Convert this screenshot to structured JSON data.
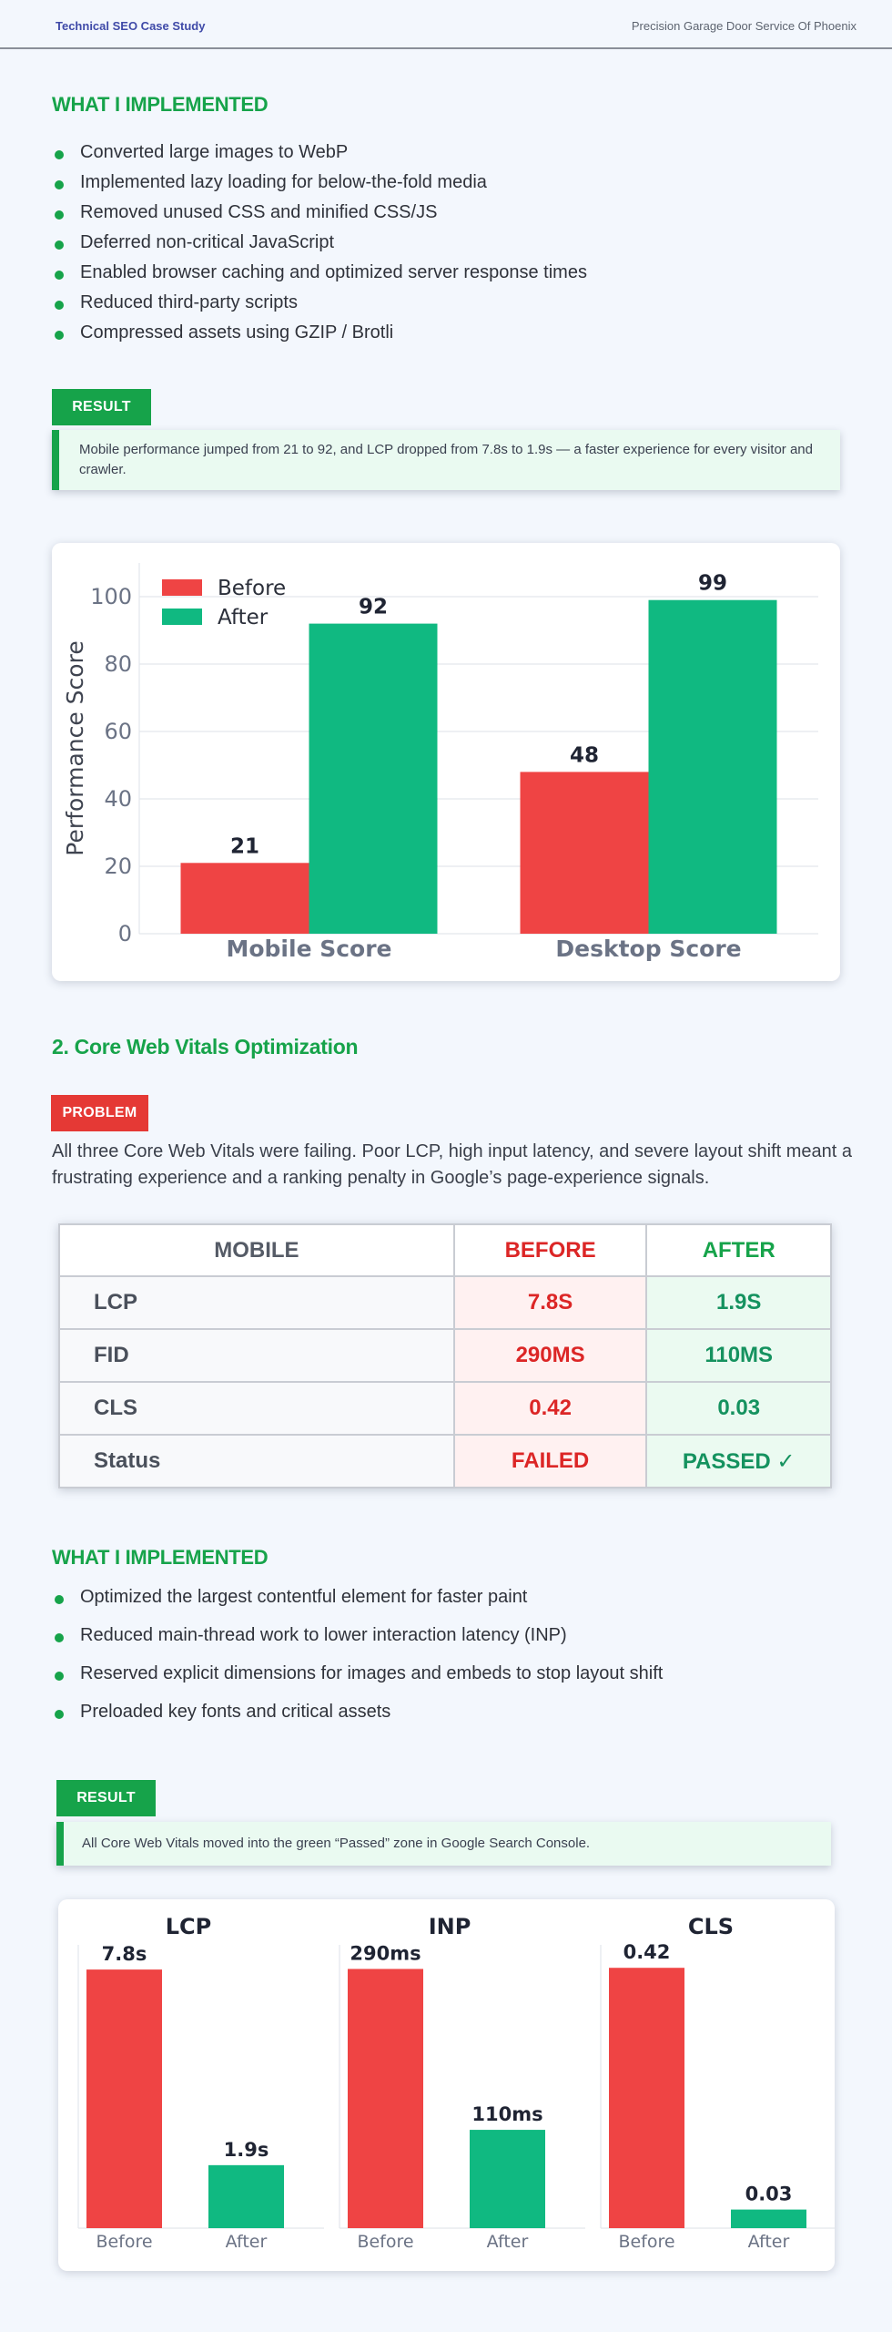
{
  "header": {
    "left": "Technical SEO Case Study",
    "right": "Precision Garage Door Service Of Phoenix"
  },
  "section1": {
    "heading": "WHAT I IMPLEMENTED",
    "items": [
      "Converted large images to WebP",
      "Implemented lazy loading for below-the-fold media",
      "Removed unused CSS and minified CSS/JS",
      "Deferred non-critical JavaScript",
      "Enabled browser caching and optimized server response times",
      "Reduced third-party scripts",
      "Compressed assets using GZIP / Brotli"
    ],
    "result_tag": "RESULT",
    "result_text": "Mobile performance jumped from 21 to 92, and LCP dropped from 7.8s to 1.9s — a faster experience for every visitor and crawler."
  },
  "section2": {
    "heading": "2.  Core Web Vitals Optimization",
    "problem_tag": "PROBLEM",
    "problem_text": "All three Core Web Vitals were failing. Poor LCP, high input latency, and severe layout shift meant a frustrating experience and a ranking penalty in Google’s page-experience signals.",
    "table": {
      "headers": [
        "MOBILE",
        "BEFORE",
        "AFTER"
      ],
      "rows": [
        {
          "label": "LCP",
          "before": "7.8S",
          "after": "1.9S"
        },
        {
          "label": "FID",
          "before": "290MS",
          "after": "110MS"
        },
        {
          "label": "CLS",
          "before": "0.42",
          "after": "0.03"
        },
        {
          "label": "Status",
          "before": "FAILED",
          "after": "PASSED ✓"
        }
      ]
    },
    "impl_heading": "WHAT I IMPLEMENTED",
    "impl_items": [
      "Optimized the largest contentful element for faster paint",
      "Reduced main-thread work to lower interaction latency (INP)",
      "Reserved explicit dimensions for images and embeds to stop layout shift",
      "Preloaded key fonts and critical assets"
    ],
    "result_tag": "RESULT",
    "result_text": "All Core Web Vitals moved into the green “Passed” zone in Google Search Console."
  },
  "colors": {
    "before": "#ef4444",
    "after": "#10b981",
    "accent": "#16a34a"
  },
  "chart_data": [
    {
      "type": "bar",
      "categories": [
        "Mobile Score",
        "Desktop Score"
      ],
      "series": [
        {
          "name": "Before",
          "values": [
            21,
            48
          ]
        },
        {
          "name": "After",
          "values": [
            92,
            99
          ]
        }
      ],
      "ylabel": "Performance Score",
      "ylim": [
        0,
        110
      ],
      "yticks": [
        0,
        20,
        40,
        60,
        80,
        100
      ],
      "legend": "top-left",
      "grid": true
    },
    {
      "type": "bar",
      "title": "LCP",
      "categories": [
        "Before",
        "After"
      ],
      "values": [
        7.8,
        1.9
      ],
      "labels": [
        "7.8s",
        "1.9s"
      ],
      "ylim": [
        0,
        8.6
      ]
    },
    {
      "type": "bar",
      "title": "INP",
      "categories": [
        "Before",
        "After"
      ],
      "values": [
        290,
        110
      ],
      "labels": [
        "290ms",
        "110ms"
      ],
      "ylim": [
        0,
        319
      ]
    },
    {
      "type": "bar",
      "title": "CLS",
      "categories": [
        "Before",
        "After"
      ],
      "values": [
        0.42,
        0.03
      ],
      "labels": [
        "0.42",
        "0.03"
      ],
      "ylim": [
        0,
        0.46
      ]
    }
  ]
}
